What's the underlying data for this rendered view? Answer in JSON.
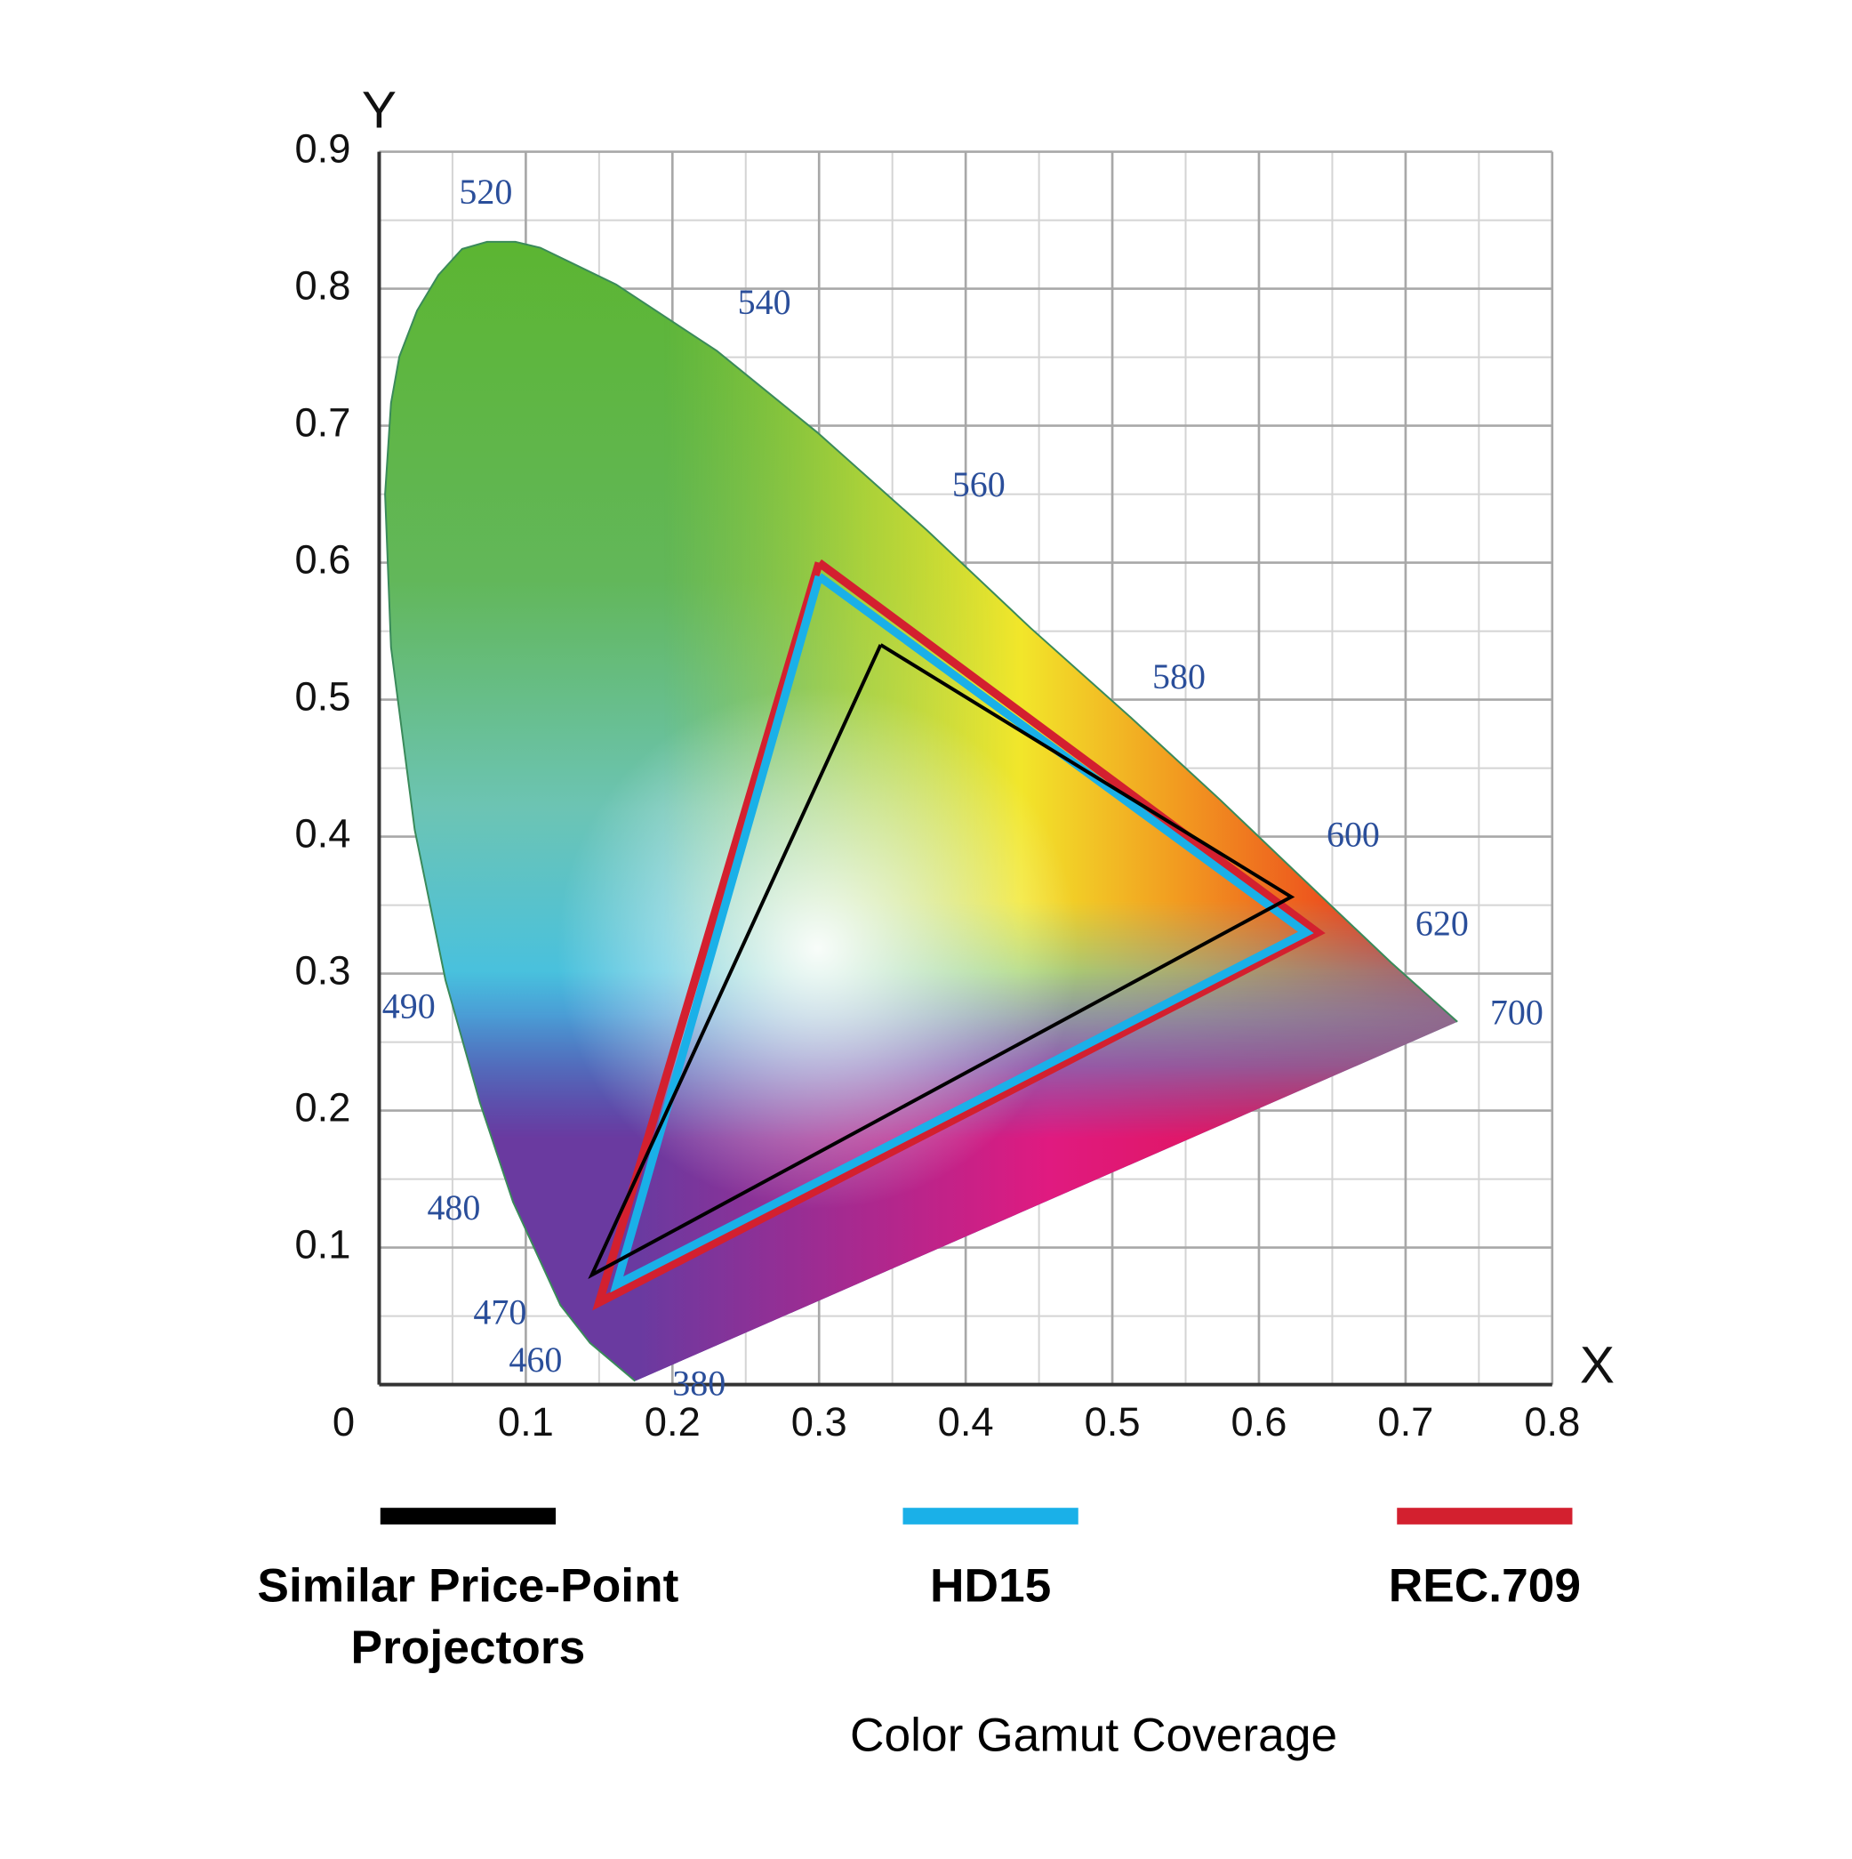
{
  "chart_data": {
    "type": "line",
    "title": "Color Gamut Coverage",
    "x_label": "X",
    "y_label": "Y",
    "xlim": [
      0,
      0.8
    ],
    "ylim": [
      0,
      0.9
    ],
    "xticks": [
      0,
      0.1,
      0.2,
      0.3,
      0.4,
      0.5,
      0.6,
      0.7,
      0.8
    ],
    "yticks": [
      0.1,
      0.2,
      0.3,
      0.4,
      0.5,
      0.6,
      0.7,
      0.8,
      0.9
    ],
    "minor_xticks": [
      0.05,
      0.15,
      0.25,
      0.35,
      0.45,
      0.55,
      0.65,
      0.75
    ],
    "minor_yticks": [
      0.05,
      0.15,
      0.25,
      0.35,
      0.45,
      0.55,
      0.65,
      0.75,
      0.85
    ],
    "grid": true,
    "wavelength_labels": [
      "520",
      "540",
      "560",
      "580",
      "600",
      "620",
      "700",
      "490",
      "480",
      "470",
      "460",
      "380"
    ],
    "series": [
      {
        "name": "REC.709",
        "color": "#d3202f",
        "x": [
          0.3,
          0.64,
          0.15,
          0.3
        ],
        "values": [
          0.6,
          0.33,
          0.06,
          0.6
        ]
      },
      {
        "name": "HD15",
        "color": "#1ab0e8",
        "x": [
          0.3,
          0.632,
          0.162,
          0.3
        ],
        "values": [
          0.59,
          0.33,
          0.073,
          0.59
        ]
      },
      {
        "name": "Similar Price-Point Projectors",
        "color": "#000000",
        "x": [
          0.342,
          0.622,
          0.145,
          0.342
        ],
        "values": [
          0.54,
          0.356,
          0.08,
          0.54
        ]
      }
    ],
    "legend_order": [
      2,
      1,
      0
    ]
  }
}
